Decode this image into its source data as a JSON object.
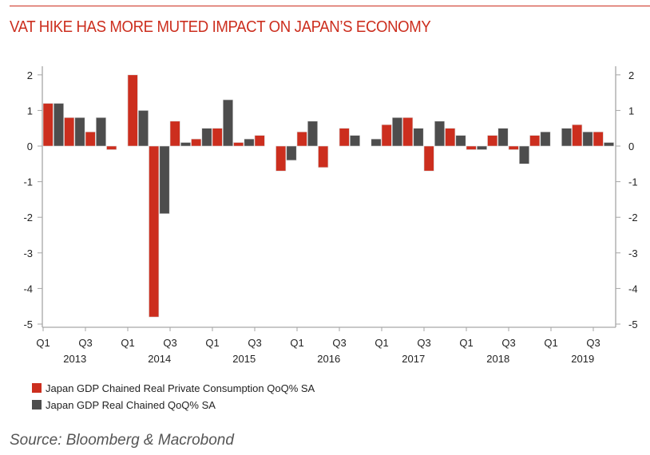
{
  "title": "VAT HIKE HAS MORE MUTED IMPACT ON JAPAN’S ECONOMY",
  "source": "Source: Bloomberg & Macrobond",
  "colors": {
    "accent": "#cc2e1e",
    "series1": "#cc2e1e",
    "series2": "#4d4d4d",
    "axis": "#a6a6a6"
  },
  "legend": [
    {
      "label": "Japan GDP Chained Real Private Consumption QoQ% SA",
      "color": "#cc2e1e"
    },
    {
      "label": "Japan GDP Real Chained QoQ% SA",
      "color": "#4d4d4d"
    }
  ],
  "chart_data": {
    "type": "bar",
    "title": "VAT HIKE HAS MORE MUTED IMPACT ON JAPAN’S ECONOMY",
    "xlabel": "",
    "ylabel": "",
    "ylim": [
      -5,
      2
    ],
    "yticks": [
      2,
      1,
      0,
      -1,
      -2,
      -3,
      -4,
      -5
    ],
    "grid": false,
    "dual_axis_mirrored": true,
    "legend_position": "bottom-left",
    "categories": [
      "2013 Q1",
      "2013 Q2",
      "2013 Q3",
      "2013 Q4",
      "2014 Q1",
      "2014 Q2",
      "2014 Q3",
      "2014 Q4",
      "2015 Q1",
      "2015 Q2",
      "2015 Q3",
      "2015 Q4",
      "2016 Q1",
      "2016 Q2",
      "2016 Q3",
      "2016 Q4",
      "2017 Q1",
      "2017 Q2",
      "2017 Q3",
      "2017 Q4",
      "2018 Q1",
      "2018 Q2",
      "2018 Q3",
      "2018 Q4",
      "2019 Q1",
      "2019 Q2",
      "2019 Q3"
    ],
    "x_tick_labels": [
      {
        "quarter": "Q1",
        "year": "2013"
      },
      {
        "quarter": "Q3",
        "year": ""
      },
      {
        "quarter": "Q1",
        "year": "2014"
      },
      {
        "quarter": "Q3",
        "year": ""
      },
      {
        "quarter": "Q1",
        "year": "2015"
      },
      {
        "quarter": "Q3",
        "year": ""
      },
      {
        "quarter": "Q1",
        "year": "2016"
      },
      {
        "quarter": "Q3",
        "year": ""
      },
      {
        "quarter": "Q1",
        "year": "2017"
      },
      {
        "quarter": "Q3",
        "year": ""
      },
      {
        "quarter": "Q1",
        "year": "2018"
      },
      {
        "quarter": "Q3",
        "year": ""
      },
      {
        "quarter": "Q1",
        "year": "2019"
      },
      {
        "quarter": "Q3",
        "year": ""
      }
    ],
    "year_labels": [
      "2013",
      "2014",
      "2015",
      "2016",
      "2017",
      "2018",
      "2019"
    ],
    "series": [
      {
        "name": "Japan GDP Chained Real Private Consumption QoQ% SA",
        "color": "#cc2e1e",
        "values": [
          1.2,
          0.8,
          0.4,
          -0.1,
          2.0,
          -4.8,
          0.7,
          0.2,
          0.5,
          0.1,
          0.3,
          -0.7,
          0.4,
          -0.6,
          0.5,
          0.0,
          0.6,
          0.8,
          -0.7,
          0.5,
          -0.1,
          0.3,
          -0.1,
          0.3,
          0.0,
          0.6,
          0.4
        ]
      },
      {
        "name": "Japan GDP Real Chained QoQ% SA",
        "color": "#4d4d4d",
        "values": [
          1.2,
          0.8,
          0.8,
          0.0,
          1.0,
          -1.9,
          0.1,
          0.5,
          1.3,
          0.2,
          0.0,
          -0.4,
          0.7,
          0.0,
          0.3,
          0.2,
          0.8,
          0.5,
          0.7,
          0.3,
          -0.1,
          0.5,
          -0.5,
          0.4,
          0.5,
          0.4,
          0.1
        ]
      }
    ]
  }
}
